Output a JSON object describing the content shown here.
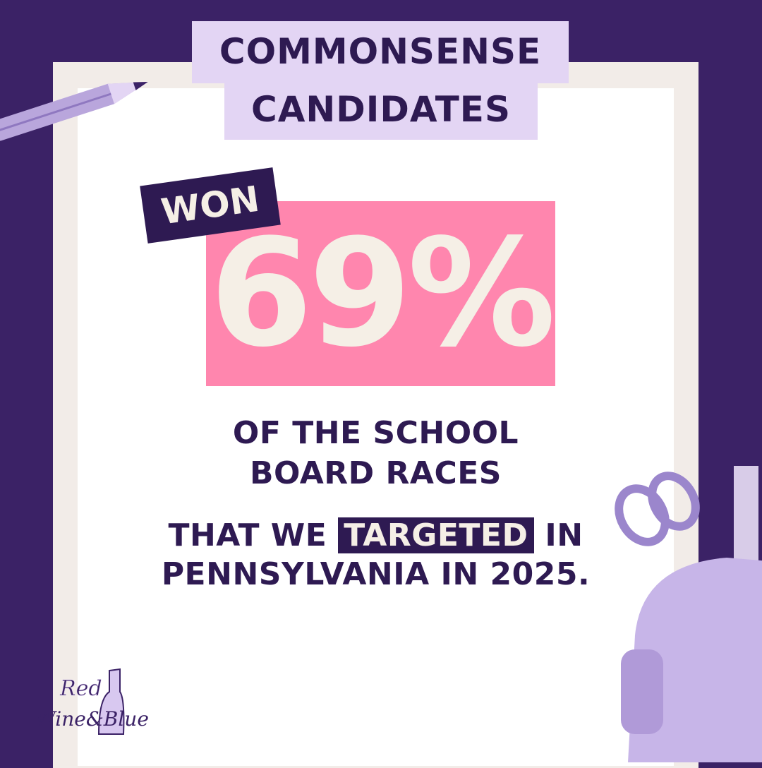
{
  "header": {
    "line1": "COMMONSENSE",
    "line2": "CANDIDATES"
  },
  "badge": "WON",
  "stat": "69%",
  "body": {
    "line1": "OF THE SCHOOL",
    "line2": "BOARD RACES",
    "line3_before": "THAT WE",
    "line3_highlight": "TARGETED",
    "line3_after": "IN",
    "line4": "PENNSYLVANIA IN 2025."
  },
  "logo": {
    "text_line1": "Red",
    "text_line2": "Wine&Blue"
  },
  "colors": {
    "background": "#3b2266",
    "text": "#2e1a52",
    "header_bg": "#e3d5f4",
    "stat_bg": "#ff86ae",
    "stat_text": "#f5efe6"
  }
}
